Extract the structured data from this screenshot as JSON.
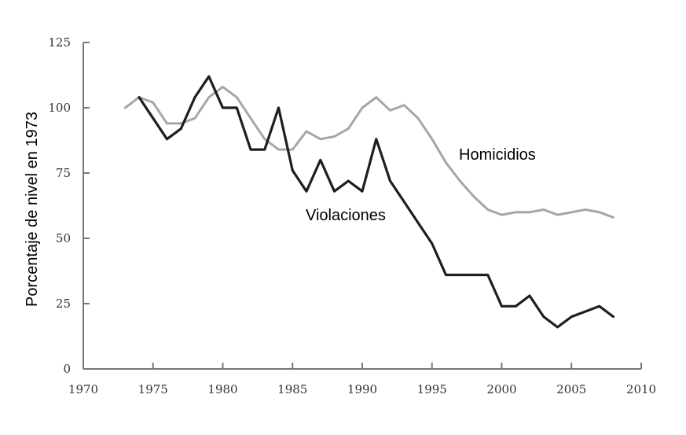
{
  "chart_data": {
    "type": "line",
    "title": "",
    "xlabel": "",
    "ylabel": "Porcentaje de nivel en 1973",
    "xlim": [
      1970,
      2010
    ],
    "ylim": [
      0,
      125
    ],
    "x_ticks": [
      "1970",
      "1975",
      "1980",
      "1985",
      "1990",
      "1995",
      "2000",
      "2005",
      "2010"
    ],
    "y_ticks": [
      "0",
      "25",
      "50",
      "75",
      "100",
      "125"
    ],
    "grid": false,
    "legend": "none",
    "series": [
      {
        "name": "Homicidios",
        "color": "#a6a6a6",
        "x": [
          1973,
          1974,
          1975,
          1976,
          1977,
          1978,
          1979,
          1980,
          1981,
          1982,
          1983,
          1984,
          1985,
          1986,
          1987,
          1988,
          1989,
          1990,
          1991,
          1992,
          1993,
          1994,
          1995,
          1996,
          1997,
          1998,
          1999,
          2000,
          2001,
          2002,
          2003,
          2004,
          2005,
          2006,
          2007,
          2008
        ],
        "values": [
          100,
          104,
          102,
          94,
          94,
          96,
          104,
          108,
          104,
          96,
          88,
          84,
          84,
          91,
          88,
          89,
          92,
          100,
          104,
          99,
          101,
          96,
          88,
          79,
          72,
          66,
          61,
          59,
          60,
          60,
          61,
          59,
          60,
          61,
          60,
          58
        ]
      },
      {
        "name": "Violaciones",
        "color": "#1e1e1e",
        "x": [
          1974,
          1975,
          1976,
          1977,
          1978,
          1979,
          1980,
          1981,
          1982,
          1983,
          1984,
          1985,
          1986,
          1987,
          1988,
          1989,
          1990,
          1991,
          1992,
          1993,
          1994,
          1995,
          1996,
          1997,
          1998,
          1999,
          2000,
          2001,
          2002,
          2003,
          2004,
          2005,
          2006,
          2007,
          2008
        ],
        "values": [
          104,
          96,
          88,
          92,
          104,
          112,
          100,
          100,
          84,
          84,
          100,
          76,
          68,
          80,
          68,
          72,
          68,
          88,
          72,
          64,
          56,
          48,
          36,
          36,
          36,
          36,
          24,
          24,
          28,
          20,
          16,
          20,
          22,
          24,
          20
        ]
      }
    ]
  }
}
